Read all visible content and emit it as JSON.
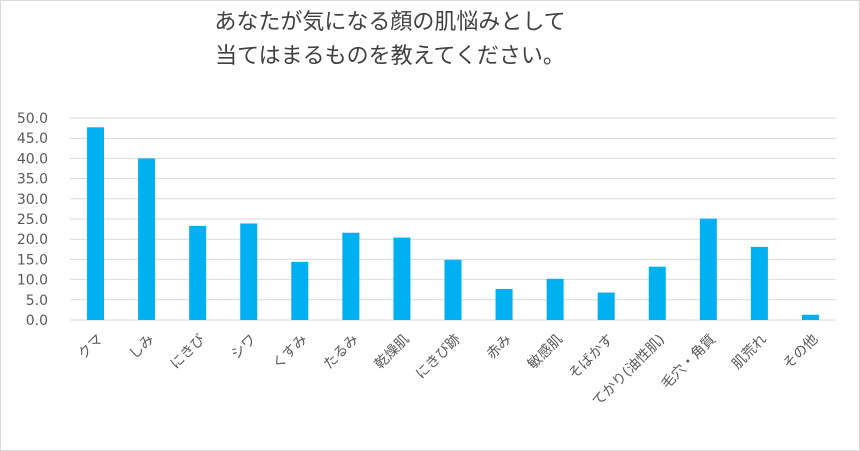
{
  "chart_data": {
    "type": "bar",
    "title_lines": [
      "あなたが気になる顔の肌悩みとして",
      "当てはまるものを教えてください。"
    ],
    "categories": [
      "クマ",
      "しみ",
      "にきび",
      "シワ",
      "くすみ",
      "たるみ",
      "乾燥肌",
      "にきび跡",
      "赤み",
      "敏感肌",
      "そばかす",
      "てかり(油性肌)",
      "毛穴・角質",
      "肌荒れ",
      "その他"
    ],
    "values": [
      47.7,
      40.0,
      23.3,
      23.9,
      14.4,
      21.6,
      20.4,
      14.9,
      7.7,
      10.2,
      6.8,
      13.2,
      25.1,
      18.1,
      1.3
    ],
    "y_ticks": [
      "0.0",
      "5.0",
      "10.0",
      "15.0",
      "20.0",
      "25.0",
      "30.0",
      "35.0",
      "40.0",
      "45.0",
      "50.0"
    ],
    "ylim": [
      0,
      50
    ],
    "grid": true,
    "bar_color": "#00b0f0",
    "grid_color": "#d9d9d9"
  }
}
